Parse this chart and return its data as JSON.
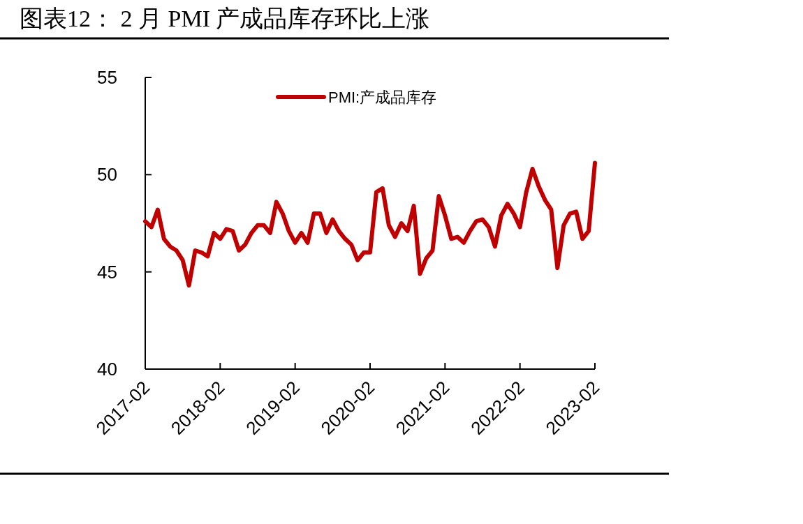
{
  "chart_data": {
    "type": "line",
    "title": "图表12：  2 月 PMI 产成品库存环比上涨",
    "x": [
      "2017-02",
      "2017-03",
      "2017-04",
      "2017-05",
      "2017-06",
      "2017-07",
      "2017-08",
      "2017-09",
      "2017-10",
      "2017-11",
      "2017-12",
      "2018-01",
      "2018-02",
      "2018-03",
      "2018-04",
      "2018-05",
      "2018-06",
      "2018-07",
      "2018-08",
      "2018-09",
      "2018-10",
      "2018-11",
      "2018-12",
      "2019-01",
      "2019-02",
      "2019-03",
      "2019-04",
      "2019-05",
      "2019-06",
      "2019-07",
      "2019-08",
      "2019-09",
      "2019-10",
      "2019-11",
      "2019-12",
      "2020-01",
      "2020-02",
      "2020-03",
      "2020-04",
      "2020-05",
      "2020-06",
      "2020-07",
      "2020-08",
      "2020-09",
      "2020-10",
      "2020-11",
      "2020-12",
      "2021-01",
      "2021-02",
      "2021-03",
      "2021-04",
      "2021-05",
      "2021-06",
      "2021-07",
      "2021-08",
      "2021-09",
      "2021-10",
      "2021-11",
      "2021-12",
      "2022-01",
      "2022-02",
      "2022-03",
      "2022-04",
      "2022-05",
      "2022-06",
      "2022-07",
      "2022-08",
      "2022-09",
      "2022-10",
      "2022-11",
      "2022-12",
      "2023-01",
      "2023-02"
    ],
    "series": [
      {
        "name": "PMI:产成品库存",
        "color": "#c00000",
        "values": [
          47.6,
          47.3,
          48.2,
          46.7,
          46.3,
          46.1,
          45.6,
          44.3,
          46.1,
          46.0,
          45.8,
          47.0,
          46.7,
          47.2,
          47.1,
          46.1,
          46.4,
          47.0,
          47.4,
          47.4,
          47.0,
          48.6,
          48.0,
          47.1,
          46.5,
          47.0,
          46.5,
          48.0,
          48.0,
          47.0,
          47.7,
          47.1,
          46.7,
          46.4,
          45.6,
          46.0,
          46.0,
          49.1,
          49.3,
          47.4,
          46.8,
          47.5,
          47.1,
          48.4,
          44.9,
          45.7,
          46.1,
          48.9,
          47.9,
          46.7,
          46.8,
          46.5,
          47.1,
          47.6,
          47.7,
          47.3,
          46.3,
          47.9,
          48.5,
          48.0,
          47.3,
          49.1,
          50.3,
          49.4,
          48.7,
          48.2,
          45.2,
          47.4,
          48.0,
          48.1,
          46.7,
          47.1,
          50.6
        ]
      }
    ],
    "xlim": [
      "2017-02",
      "2023-02"
    ],
    "xticks": [
      "2017-02",
      "2018-02",
      "2019-02",
      "2020-02",
      "2021-02",
      "2022-02",
      "2023-02"
    ],
    "ylim": [
      40,
      55
    ],
    "yticks": [
      40,
      45,
      50,
      55
    ],
    "legend": "top",
    "grid": false,
    "marker": "none",
    "line_style": "solid"
  }
}
